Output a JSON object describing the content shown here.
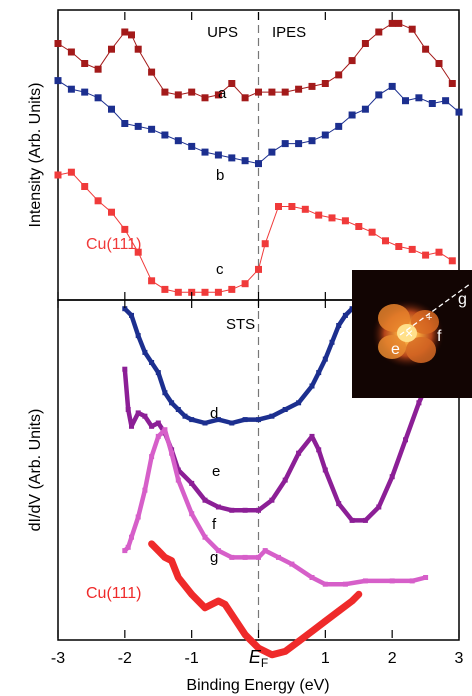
{
  "figure": {
    "ylabel_top": "Intensity (Arb. Units)",
    "ylabel_bottom": "dI/dV (Arb. Units)",
    "xlabel": "Binding Energy (eV)",
    "label_ups": "UPS",
    "label_ipes": "IPES",
    "label_sts": "STS",
    "inset_labels": [
      "e",
      "f",
      "g"
    ],
    "colors": {
      "dark_red": "#a31a1a",
      "blue": "#1c2f8f",
      "red": "#f03a3a",
      "purple": "#8c1f96",
      "pink": "#d65fc9",
      "red_bold": "#ef2a2a"
    }
  },
  "chart_data": [
    {
      "type": "scatter",
      "panel": "top",
      "title": "",
      "xlabel": "Binding Energy (eV)",
      "ylabel": "Intensity (Arb. Units)",
      "xlim": [
        -3,
        3
      ],
      "ylim": [
        0,
        10
      ],
      "y_ticks": "none",
      "grid": false,
      "annotations": [
        "UPS",
        "IPES"
      ],
      "series": [
        {
          "name": "a",
          "color": "#a31a1a",
          "x": [
            -3.0,
            -2.8,
            -2.6,
            -2.4,
            -2.2,
            -2.0,
            -1.9,
            -1.8,
            -1.6,
            -1.4,
            -1.2,
            -1.0,
            -0.8,
            -0.6,
            -0.4,
            -0.2,
            0.0,
            0.2,
            0.4,
            0.6,
            0.8,
            1.0,
            1.2,
            1.4,
            1.6,
            1.8,
            2.0,
            2.1,
            2.3,
            2.5,
            2.7,
            2.9
          ],
          "y": [
            8.9,
            8.6,
            8.2,
            8.0,
            8.7,
            9.3,
            9.2,
            8.7,
            7.9,
            7.2,
            7.1,
            7.2,
            7.0,
            7.1,
            7.5,
            7.0,
            7.2,
            7.2,
            7.2,
            7.3,
            7.4,
            7.5,
            7.8,
            8.3,
            8.9,
            9.3,
            9.6,
            9.6,
            9.4,
            8.7,
            8.2,
            7.5
          ]
        },
        {
          "name": "b",
          "color": "#1c2f8f",
          "x": [
            -3.0,
            -2.8,
            -2.6,
            -2.4,
            -2.2,
            -2.0,
            -1.8,
            -1.6,
            -1.4,
            -1.2,
            -1.0,
            -0.8,
            -0.6,
            -0.4,
            -0.2,
            0.0,
            0.2,
            0.4,
            0.6,
            0.8,
            1.0,
            1.2,
            1.4,
            1.6,
            1.8,
            2.0,
            2.2,
            2.4,
            2.6,
            2.8,
            3.0
          ],
          "y": [
            7.6,
            7.3,
            7.2,
            7.0,
            6.6,
            6.1,
            6.0,
            5.9,
            5.7,
            5.5,
            5.3,
            5.1,
            5.0,
            4.9,
            4.8,
            4.7,
            5.1,
            5.4,
            5.4,
            5.5,
            5.7,
            6.0,
            6.4,
            6.6,
            7.1,
            7.4,
            6.9,
            7.0,
            6.8,
            6.9,
            6.5
          ]
        },
        {
          "name": "Cu(111)",
          "color": "#f03a3a",
          "x": [
            -3.0,
            -2.8,
            -2.6,
            -2.4,
            -2.2,
            -2.0,
            -1.8,
            -1.6,
            -1.4,
            -1.2,
            -1.0,
            -0.8,
            -0.6,
            -0.4,
            -0.2,
            0.0,
            0.1,
            0.3,
            0.5,
            0.7,
            0.9,
            1.1,
            1.3,
            1.5,
            1.7,
            1.9,
            2.1,
            2.3,
            2.5,
            2.7,
            2.9
          ],
          "y": [
            4.3,
            4.4,
            3.9,
            3.4,
            3.0,
            2.4,
            1.6,
            0.6,
            0.3,
            0.2,
            0.2,
            0.2,
            0.2,
            0.3,
            0.5,
            1.0,
            1.9,
            3.2,
            3.2,
            3.1,
            2.9,
            2.8,
            2.7,
            2.5,
            2.3,
            2.0,
            1.8,
            1.7,
            1.5,
            1.6,
            1.3
          ]
        }
      ],
      "curve_labels": [
        "a",
        "b",
        "c",
        "Cu(111)"
      ]
    },
    {
      "type": "scatter",
      "panel": "bottom",
      "title": "",
      "xlabel": "Binding Energy (eV)",
      "ylabel": "dI/dV (Arb. Units)",
      "xlim": [
        -3,
        3
      ],
      "ylim": [
        0,
        10
      ],
      "x_ticks": [
        -3,
        -2,
        -1,
        0,
        1,
        2,
        3
      ],
      "x_tick_labels": [
        "-3",
        "-2",
        "-1",
        "E_F",
        "1",
        "2",
        "3"
      ],
      "grid": false,
      "annotations": [
        "STS"
      ],
      "series": [
        {
          "name": "d",
          "color": "#1c2f8f",
          "x": [
            -2.0,
            -1.9,
            -1.8,
            -1.7,
            -1.6,
            -1.5,
            -1.4,
            -1.3,
            -1.2,
            -1.1,
            -1.0,
            -0.8,
            -0.6,
            -0.4,
            -0.2,
            0.0,
            0.2,
            0.4,
            0.6,
            0.8,
            0.9,
            1.0,
            1.1,
            1.2,
            1.3,
            1.4
          ],
          "y": [
            9.8,
            9.6,
            9.0,
            8.5,
            8.2,
            7.9,
            7.3,
            7.0,
            6.8,
            6.6,
            6.5,
            6.4,
            6.5,
            6.4,
            6.5,
            6.5,
            6.6,
            6.8,
            7.0,
            7.5,
            7.9,
            8.3,
            8.8,
            9.3,
            9.6,
            9.8
          ]
        },
        {
          "name": "e",
          "color": "#8c1f96",
          "x": [
            -2.0,
            -1.95,
            -1.9,
            -1.8,
            -1.7,
            -1.6,
            -1.5,
            -1.4,
            -1.3,
            -1.2,
            -1.0,
            -0.8,
            -0.6,
            -0.4,
            -0.2,
            0.0,
            0.2,
            0.4,
            0.6,
            0.8,
            0.9,
            1.0,
            1.2,
            1.4,
            1.6,
            1.8,
            2.0,
            2.2,
            2.4,
            2.6
          ],
          "y": [
            8.0,
            6.8,
            6.3,
            6.7,
            6.6,
            6.3,
            6.4,
            6.1,
            5.6,
            5.0,
            4.6,
            4.1,
            3.9,
            3.8,
            3.8,
            3.8,
            4.1,
            4.7,
            5.5,
            6.0,
            5.6,
            5.0,
            4.0,
            3.5,
            3.5,
            3.9,
            4.8,
            5.9,
            7.0,
            7.9
          ]
        },
        {
          "name": "f",
          "color": "#d65fc9",
          "x": [
            -2.0,
            -1.95,
            -1.9,
            -1.8,
            -1.7,
            -1.6,
            -1.5,
            -1.4,
            -1.3,
            -1.2,
            -1.0,
            -0.8,
            -0.6,
            -0.4,
            -0.2,
            0.0,
            0.1,
            0.3,
            0.5,
            0.8,
            1.0,
            1.3,
            1.6,
            2.0,
            2.3,
            2.5
          ],
          "y": [
            2.6,
            2.7,
            3.0,
            3.6,
            4.4,
            5.4,
            6.0,
            6.2,
            5.5,
            4.7,
            3.7,
            3.0,
            2.6,
            2.4,
            2.4,
            2.4,
            2.6,
            2.4,
            2.2,
            1.8,
            1.6,
            1.6,
            1.7,
            1.7,
            1.7,
            1.8
          ]
        },
        {
          "name": "Cu(111)",
          "color": "#ef2a2a",
          "x": [
            -1.6,
            -1.5,
            -1.4,
            -1.3,
            -1.2,
            -1.0,
            -0.8,
            -0.6,
            -0.5,
            -0.4,
            -0.2,
            0.0,
            0.2,
            0.4,
            0.6,
            0.8,
            1.0,
            1.2,
            1.4,
            1.5
          ],
          "y": [
            2.8,
            2.6,
            2.4,
            2.3,
            1.8,
            1.3,
            0.9,
            1.1,
            1.0,
            0.7,
            0.1,
            -0.3,
            -0.5,
            -0.4,
            -0.1,
            0.2,
            0.5,
            0.8,
            1.1,
            1.3
          ]
        }
      ],
      "curve_labels": [
        "d",
        "e",
        "f",
        "g",
        "Cu(111)"
      ]
    }
  ]
}
